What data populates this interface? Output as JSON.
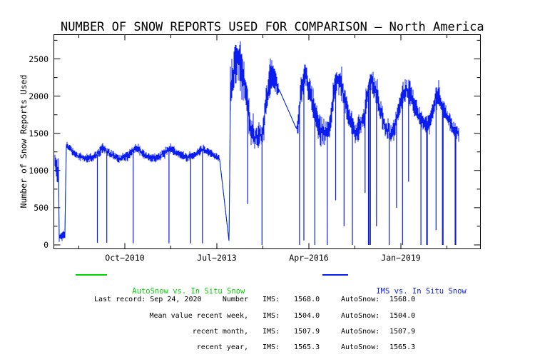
{
  "title": "NUMBER OF SNOW REPORTS USED FOR COMPARISON — North America",
  "legend": {
    "autosnow": {
      "label": "AutoSnow vs. In Situ Snow",
      "color": "#00d400"
    },
    "ims": {
      "label": "IMS vs. In Situ Snow",
      "color": "#0a1cf0"
    }
  },
  "stats": {
    "rows": [
      {
        "label": "Last record: Sep 24, 2020",
        "label2": "Number",
        "ims_label": "IMS:",
        "ims_value": "1568.0",
        "autosnow_label": "AutoSnow:",
        "autosnow_value": "1568.0"
      },
      {
        "label": "Mean value recent week,",
        "label2": "",
        "ims_label": "IMS:",
        "ims_value": "1504.0",
        "autosnow_label": "AutoSnow:",
        "autosnow_value": "1504.0"
      },
      {
        "label": "recent month,",
        "label2": "",
        "ims_label": "IMS:",
        "ims_value": "1507.9",
        "autosnow_label": "AutoSnow:",
        "autosnow_value": "1507.9"
      },
      {
        "label": "recent year,",
        "label2": "",
        "ims_label": "IMS:",
        "ims_value": "1565.3",
        "autosnow_label": "AutoSnow:",
        "autosnow_value": "1565.3"
      }
    ]
  },
  "chart_data": {
    "type": "line",
    "title": "NUMBER OF SNOW REPORTS USED FOR COMPARISON — North America",
    "xlabel": "",
    "ylabel": "Number of Snow Reports Used",
    "grid": false,
    "legend_position": "below",
    "x_axis": {
      "unit": "decimal_year",
      "start_year": 2008.62,
      "end_year": 2021.37,
      "major_ticks": [
        {
          "year": 2010.75,
          "label": "Oct−2010"
        },
        {
          "year": 2013.5,
          "label": "Jul−2013"
        },
        {
          "year": 2016.25,
          "label": "Apr−2016"
        },
        {
          "year": 2019.0,
          "label": "Jan−2019"
        }
      ],
      "minor_ticks": [
        2009.375,
        2012.125,
        2014.875,
        2017.625,
        2020.375
      ]
    },
    "y_axis": {
      "min": 0,
      "max": 2800,
      "major_ticks": [
        0,
        500,
        1000,
        1500,
        2000,
        2500
      ],
      "minor_step": 250
    },
    "series": [
      {
        "name": "IMS vs. In Situ Snow",
        "color": "#0a1cf0",
        "style": "noisy daily band: profile entries are [decimal_year, mean_value, half_range]; half_range 0 = straight interpolated gap line",
        "profile": [
          [
            2008.64,
            1070,
            180
          ],
          [
            2008.77,
            1010,
            150
          ],
          [
            2008.785,
            90,
            60
          ],
          [
            2008.97,
            150,
            70
          ],
          [
            2008.99,
            1340,
            55
          ],
          [
            2009.08,
            1320,
            60
          ],
          [
            2009.3,
            1210,
            50
          ],
          [
            2009.55,
            1160,
            55
          ],
          [
            2009.8,
            1160,
            55
          ],
          [
            2010.0,
            1260,
            60
          ],
          [
            2010.1,
            1300,
            60
          ],
          [
            2010.3,
            1230,
            55
          ],
          [
            2010.55,
            1160,
            55
          ],
          [
            2010.85,
            1190,
            55
          ],
          [
            2011.02,
            1300,
            60
          ],
          [
            2011.15,
            1290,
            60
          ],
          [
            2011.4,
            1190,
            55
          ],
          [
            2011.7,
            1165,
            55
          ],
          [
            2011.95,
            1250,
            60
          ],
          [
            2012.1,
            1300,
            60
          ],
          [
            2012.3,
            1240,
            55
          ],
          [
            2012.6,
            1170,
            55
          ],
          [
            2012.9,
            1220,
            55
          ],
          [
            2013.05,
            1290,
            60
          ],
          [
            2013.2,
            1260,
            55
          ],
          [
            2013.45,
            1200,
            45
          ],
          [
            2013.56,
            1170,
            45
          ],
          [
            2013.585,
            1140,
            0
          ],
          [
            2013.875,
            5,
            0
          ],
          [
            2013.895,
            2100,
            330
          ],
          [
            2014.0,
            2350,
            290
          ],
          [
            2014.1,
            2450,
            260
          ],
          [
            2014.22,
            2400,
            270
          ],
          [
            2014.35,
            2130,
            260
          ],
          [
            2014.5,
            1560,
            210
          ],
          [
            2014.65,
            1430,
            180
          ],
          [
            2014.85,
            1480,
            170
          ],
          [
            2015.0,
            2000,
            210
          ],
          [
            2015.12,
            2320,
            210
          ],
          [
            2015.28,
            2140,
            160
          ],
          [
            2015.38,
            2070,
            0
          ],
          [
            2015.88,
            1560,
            0
          ],
          [
            2015.92,
            1610,
            150
          ],
          [
            2016.06,
            2220,
            210
          ],
          [
            2016.18,
            2270,
            190
          ],
          [
            2016.38,
            1870,
            190
          ],
          [
            2016.6,
            1510,
            170
          ],
          [
            2016.85,
            1560,
            150
          ],
          [
            2017.04,
            2180,
            200
          ],
          [
            2017.16,
            2230,
            190
          ],
          [
            2017.4,
            1810,
            160
          ],
          [
            2017.65,
            1500,
            140
          ],
          [
            2017.9,
            1710,
            160
          ],
          [
            2018.06,
            2230,
            190
          ],
          [
            2018.22,
            2110,
            170
          ],
          [
            2018.5,
            1610,
            140
          ],
          [
            2018.75,
            1460,
            130
          ],
          [
            2018.98,
            1890,
            160
          ],
          [
            2019.16,
            2120,
            170
          ],
          [
            2019.35,
            1960,
            150
          ],
          [
            2019.6,
            1660,
            110
          ],
          [
            2019.85,
            1610,
            110
          ],
          [
            2020.04,
            2010,
            160
          ],
          [
            2020.18,
            1940,
            150
          ],
          [
            2020.45,
            1660,
            100
          ],
          [
            2020.62,
            1530,
            100
          ],
          [
            2020.73,
            1480,
            90
          ]
        ],
        "dropouts": [
          [
            2009.93,
            30,
            1
          ],
          [
            2010.21,
            30,
            1
          ],
          [
            2011.0,
            20,
            1
          ],
          [
            2012.07,
            20,
            1
          ],
          [
            2012.72,
            20,
            1
          ],
          [
            2013.07,
            20,
            1
          ],
          [
            2014.42,
            550,
            1
          ],
          [
            2014.85,
            0,
            1
          ],
          [
            2015.97,
            0,
            1
          ],
          [
            2016.1,
            60,
            1
          ],
          [
            2016.43,
            0,
            1
          ],
          [
            2016.8,
            0,
            1
          ],
          [
            2017.05,
            600,
            1
          ],
          [
            2017.3,
            250,
            1
          ],
          [
            2017.55,
            0,
            1
          ],
          [
            2017.93,
            700,
            1
          ],
          [
            2018.03,
            0,
            2
          ],
          [
            2018.09,
            0,
            1
          ],
          [
            2018.27,
            250,
            1
          ],
          [
            2018.65,
            0,
            1
          ],
          [
            2018.87,
            500,
            1
          ],
          [
            2019.05,
            0,
            1
          ],
          [
            2019.23,
            850,
            1
          ],
          [
            2019.6,
            0,
            1
          ],
          [
            2019.77,
            0,
            2
          ],
          [
            2020.05,
            200,
            1
          ],
          [
            2020.24,
            0,
            2
          ],
          [
            2020.62,
            0,
            2
          ]
        ],
        "last_record": "Sep 24, 2020"
      },
      {
        "name": "AutoSnow vs. In Situ Snow",
        "color": "#00d400",
        "values_same_as_series": "IMS vs. In Situ Snow"
      }
    ]
  }
}
